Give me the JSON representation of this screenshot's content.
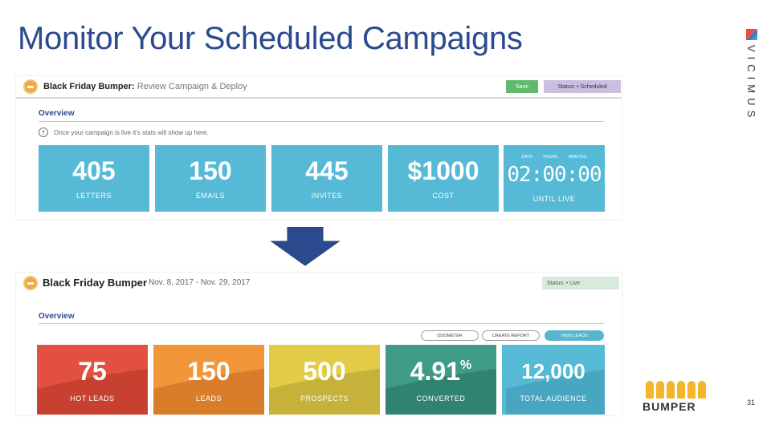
{
  "slide": {
    "title": "Monitor Your Scheduled Campaigns",
    "page_number": "31",
    "brand_vertical": "VICIMUS",
    "footer_logo": "BUMPER",
    "arrow_color": "#2c4a8e"
  },
  "top_panel": {
    "campaign_name": "Black Friday Bumper:",
    "campaign_step": "Review Campaign & Deploy",
    "save_label": "Save",
    "status_label": "Status: • Scheduled",
    "overview_label": "Overview",
    "info_text": "Once your campaign is live it's stats will show up here.",
    "tiles": [
      {
        "value": "405",
        "label": "LETTERS"
      },
      {
        "value": "150",
        "label": "EMAILS"
      },
      {
        "value": "445",
        "label": "INVITES"
      },
      {
        "value": "$1000",
        "label": "COST"
      }
    ],
    "timer": {
      "heads": [
        "DAYS",
        "HOURS",
        "MINUTES"
      ],
      "value": "02:00:00",
      "label": "UNTIL LIVE"
    }
  },
  "bottom_panel": {
    "campaign_name": "Black Friday Bumper",
    "dates": "Nov. 8, 2017 - Nov. 29, 2017",
    "status_label": "Status: • Live",
    "overview_label": "Overview",
    "buttons": {
      "odometer": "ODOMETER",
      "create_report": "CREATE REPORT",
      "view_leads": "VIEW LEADS"
    },
    "tiles": [
      {
        "value": "75",
        "label": "HOT LEADS",
        "color": "#e2513f",
        "wave": "#c8402f"
      },
      {
        "value": "150",
        "label": "LEADS",
        "color": "#f2963a",
        "wave": "#d97d2a"
      },
      {
        "value": "500",
        "label": "PROSPECTS",
        "color": "#e1cb47",
        "wave": "#c6b13a"
      },
      {
        "value": "4.91",
        "suffix": "%",
        "label": "CONVERTED",
        "color": "#3f9b86",
        "wave": "#2f8370"
      },
      {
        "value": "12,000",
        "label": "TOTAL AUDIENCE",
        "color": "#56b9d6",
        "wave": "#48a6c2"
      }
    ]
  }
}
